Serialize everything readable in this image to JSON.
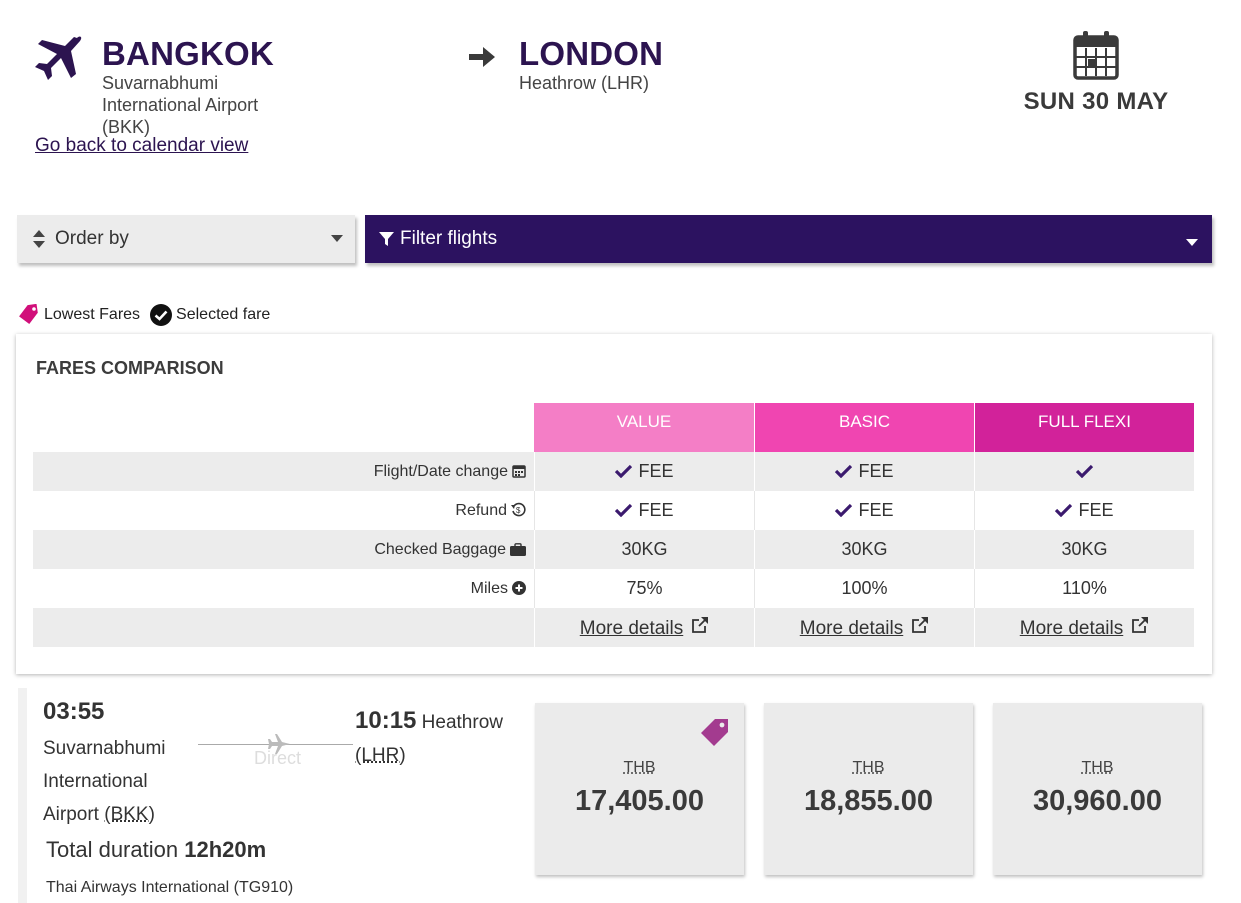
{
  "header": {
    "origin": {
      "city": "BANGKOK",
      "airport": "Suvarnabhumi International Airport (BKK)"
    },
    "destination": {
      "city": "LONDON",
      "airport": "Heathrow (LHR)"
    },
    "date": "SUN 30 MAY",
    "back_link": "Go back to calendar view"
  },
  "controls": {
    "order_by_label": "Order by",
    "filter_label": "Filter flights"
  },
  "legend": {
    "lowest": "Lowest Fares",
    "selected": "Selected fare"
  },
  "fares": {
    "title": "FARES COMPARISON",
    "columns": [
      {
        "name": "VALUE",
        "color": "#f47ec6"
      },
      {
        "name": "BASIC",
        "color": "#f045b1"
      },
      {
        "name": "FULL FLEXI",
        "color": "#d2229a"
      }
    ],
    "rows": [
      {
        "label": "Flight/Date change",
        "icon": "calendar-icon",
        "values": [
          "FEE",
          "FEE",
          ""
        ],
        "checks": [
          true,
          true,
          true
        ]
      },
      {
        "label": "Refund",
        "icon": "refund-icon",
        "values": [
          "FEE",
          "FEE",
          "FEE"
        ],
        "checks": [
          true,
          true,
          true
        ]
      },
      {
        "label": "Checked Baggage",
        "icon": "briefcase-icon",
        "values": [
          "30KG",
          "30KG",
          "30KG"
        ],
        "checks": [
          false,
          false,
          false
        ]
      },
      {
        "label": "Miles",
        "icon": "plus-circle-icon",
        "values": [
          "75%",
          "100%",
          "110%"
        ],
        "checks": [
          false,
          false,
          false
        ]
      }
    ],
    "more_details": "More details"
  },
  "flight": {
    "dep_time": "03:55",
    "dep_airport_line1": "Suvarnabhumi",
    "dep_airport_line2": "International",
    "dep_airport_line3": "Airport",
    "dep_code": "(BKK)",
    "direct": "Direct",
    "arr_time": "10:15",
    "arr_airport": "Heathrow",
    "arr_code": "(LHR)",
    "duration_label": "Total duration",
    "duration": "12h20m",
    "airline": "Thai Airways International (TG910)",
    "prices": [
      {
        "currency": "THB",
        "amount": "17,405.00",
        "lowest": true
      },
      {
        "currency": "THB",
        "amount": "18,855.00",
        "lowest": false
      },
      {
        "currency": "THB",
        "amount": "30,960.00",
        "lowest": false
      }
    ]
  },
  "colors": {
    "brand_purple": "#2c1260",
    "check_purple": "#3b1a6e",
    "tag_pink": "#d10f7a",
    "tag_purple": "#a33b8f"
  }
}
